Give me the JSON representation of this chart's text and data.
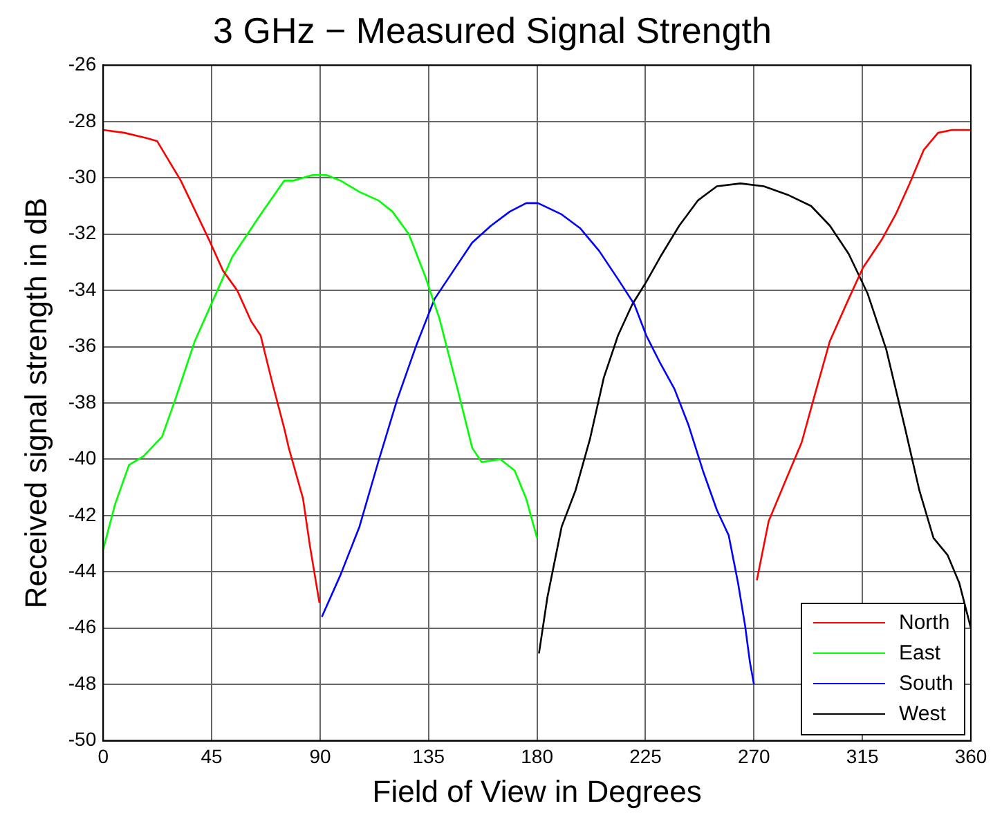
{
  "chart_data": {
    "type": "line",
    "title": "3 GHz − Measured Signal Strength",
    "xlabel": "Field of View in Degrees",
    "ylabel": "Received signal strength in dB",
    "xlim": [
      0,
      360
    ],
    "xticks": [
      0,
      45,
      90,
      135,
      180,
      225,
      270,
      315,
      360
    ],
    "ylim": [
      -50,
      -26
    ],
    "yticks": [
      -50,
      -48,
      -46,
      -44,
      -42,
      -40,
      -38,
      -36,
      -34,
      -32,
      -30,
      -28,
      -26
    ],
    "grid": true,
    "legend": "bottom right",
    "marker": "none",
    "line_style": "solid",
    "series": [
      {
        "name": "North",
        "color": "#ff0000",
        "x": [
          0,
          8.8,
          18.5,
          22.4,
          27.3,
          32.2,
          36.1,
          43.9,
          49.7,
          55.6,
          61.4,
          65.3,
          70.2,
          75.1,
          77,
          82.9,
          85.8,
          89.7,
          180,
          271.2,
          276.1,
          283.9,
          289.8,
          295.6,
          301.5,
          309.3,
          315.2,
          323,
          328.8,
          334.6,
          340.5,
          346.4,
          352.2,
          360
        ],
        "values": [
          -28.3,
          -28.4,
          -28.6,
          -28.7,
          -29.4,
          -30.1,
          -30.8,
          -32.2,
          -33.3,
          -34,
          -35.1,
          -35.6,
          -37.3,
          -38.9,
          -39.6,
          -41.4,
          -43.1,
          -45.1,
          null,
          -44.3,
          -42.2,
          -40.6,
          -39.4,
          -37.6,
          -35.8,
          -34.3,
          -33.2,
          -32.2,
          -31.3,
          -30.2,
          -29,
          -28.4,
          -28.3,
          -28.3
        ]
      },
      {
        "name": "East",
        "color": "#00ff00",
        "x": [
          0,
          4.9,
          10.7,
          16.6,
          24.4,
          30.2,
          38,
          45.8,
          53.6,
          65.3,
          75.1,
          79,
          86.8,
          92.6,
          98.5,
          106.3,
          114.1,
          120,
          126.8,
          133.6,
          139.5,
          147.3,
          153.1,
          157,
          164.8,
          170.7,
          175.5,
          180
        ],
        "values": [
          -43.2,
          -41.6,
          -40.2,
          -39.9,
          -39.2,
          -37.8,
          -35.8,
          -34.3,
          -32.8,
          -31.3,
          -30.1,
          -30.1,
          -29.9,
          -29.9,
          -30.1,
          -30.5,
          -30.8,
          -31.2,
          -32,
          -33.5,
          -35,
          -37.6,
          -39.6,
          -40.1,
          -40,
          -40.4,
          -41.4,
          -42.8
        ]
      },
      {
        "name": "South",
        "color": "#0000ff",
        "x": [
          90.7,
          98.5,
          106.3,
          114.1,
          121.9,
          129.7,
          137.5,
          145.3,
          153.1,
          160.9,
          168.7,
          175.5,
          180.4,
          190.2,
          198,
          205.8,
          213.6,
          220.4,
          225.3,
          231.2,
          237,
          242.9,
          248.8,
          254.6,
          259.5,
          263.4,
          266.3,
          268.3,
          270
        ],
        "values": [
          -45.6,
          -44.1,
          -42.4,
          -40.1,
          -37.9,
          -36,
          -34.3,
          -33.3,
          -32.3,
          -31.7,
          -31.2,
          -30.9,
          -30.9,
          -31.3,
          -31.8,
          -32.6,
          -33.6,
          -34.5,
          -35.6,
          -36.6,
          -37.5,
          -38.8,
          -40.4,
          -41.8,
          -42.7,
          -44.4,
          -45.9,
          -47.2,
          -48
        ]
      },
      {
        "name": "West",
        "color": "#000000",
        "x": [
          180.8,
          184.3,
          190.2,
          196,
          201.9,
          207.7,
          213.6,
          219.5,
          225.3,
          231.2,
          239,
          246.8,
          254.6,
          264.4,
          274.1,
          283.9,
          293.7,
          301.5,
          309.3,
          317.1,
          324.9,
          332.7,
          338.6,
          344.5,
          350.3,
          355.2,
          360
        ],
        "values": [
          -46.9,
          -44.9,
          -42.4,
          -41.1,
          -39.3,
          -37.1,
          -35.6,
          -34.5,
          -33.7,
          -32.8,
          -31.7,
          -30.8,
          -30.3,
          -30.2,
          -30.3,
          -30.6,
          -31,
          -31.7,
          -32.7,
          -34.1,
          -36.1,
          -38.9,
          -41.1,
          -42.8,
          -43.4,
          -44.4,
          -46
        ]
      }
    ]
  }
}
